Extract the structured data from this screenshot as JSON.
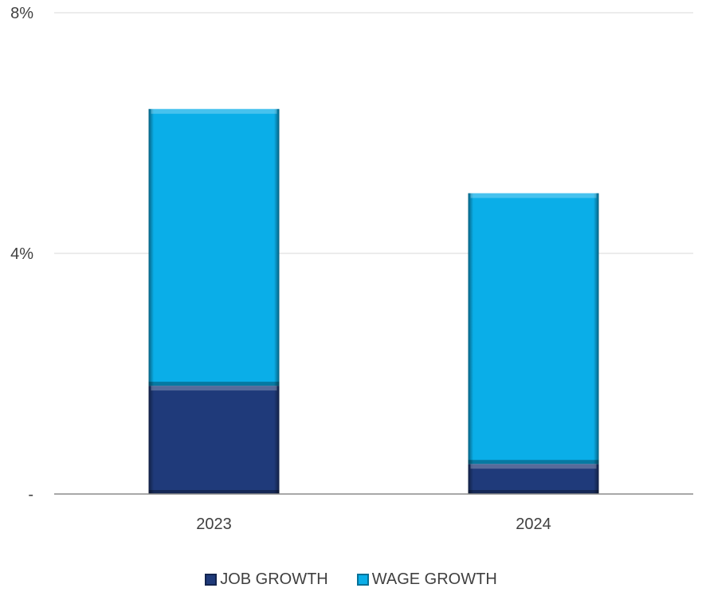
{
  "chart_data": {
    "type": "bar",
    "stacked": true,
    "categories": [
      "2023",
      "2024"
    ],
    "series": [
      {
        "name": "JOB GROWTH",
        "values": [
          1.8,
          0.5
        ],
        "color": "#1f3a7a"
      },
      {
        "name": "WAGE GROWTH",
        "values": [
          4.6,
          4.5
        ],
        "color": "#0aaee8"
      }
    ],
    "ylim": [
      0,
      8
    ],
    "yticks": [
      {
        "value": 0,
        "label": "-"
      },
      {
        "value": 4,
        "label": "4%"
      },
      {
        "value": 8,
        "label": "8%"
      }
    ],
    "grid": true,
    "legend_position": "bottom"
  }
}
